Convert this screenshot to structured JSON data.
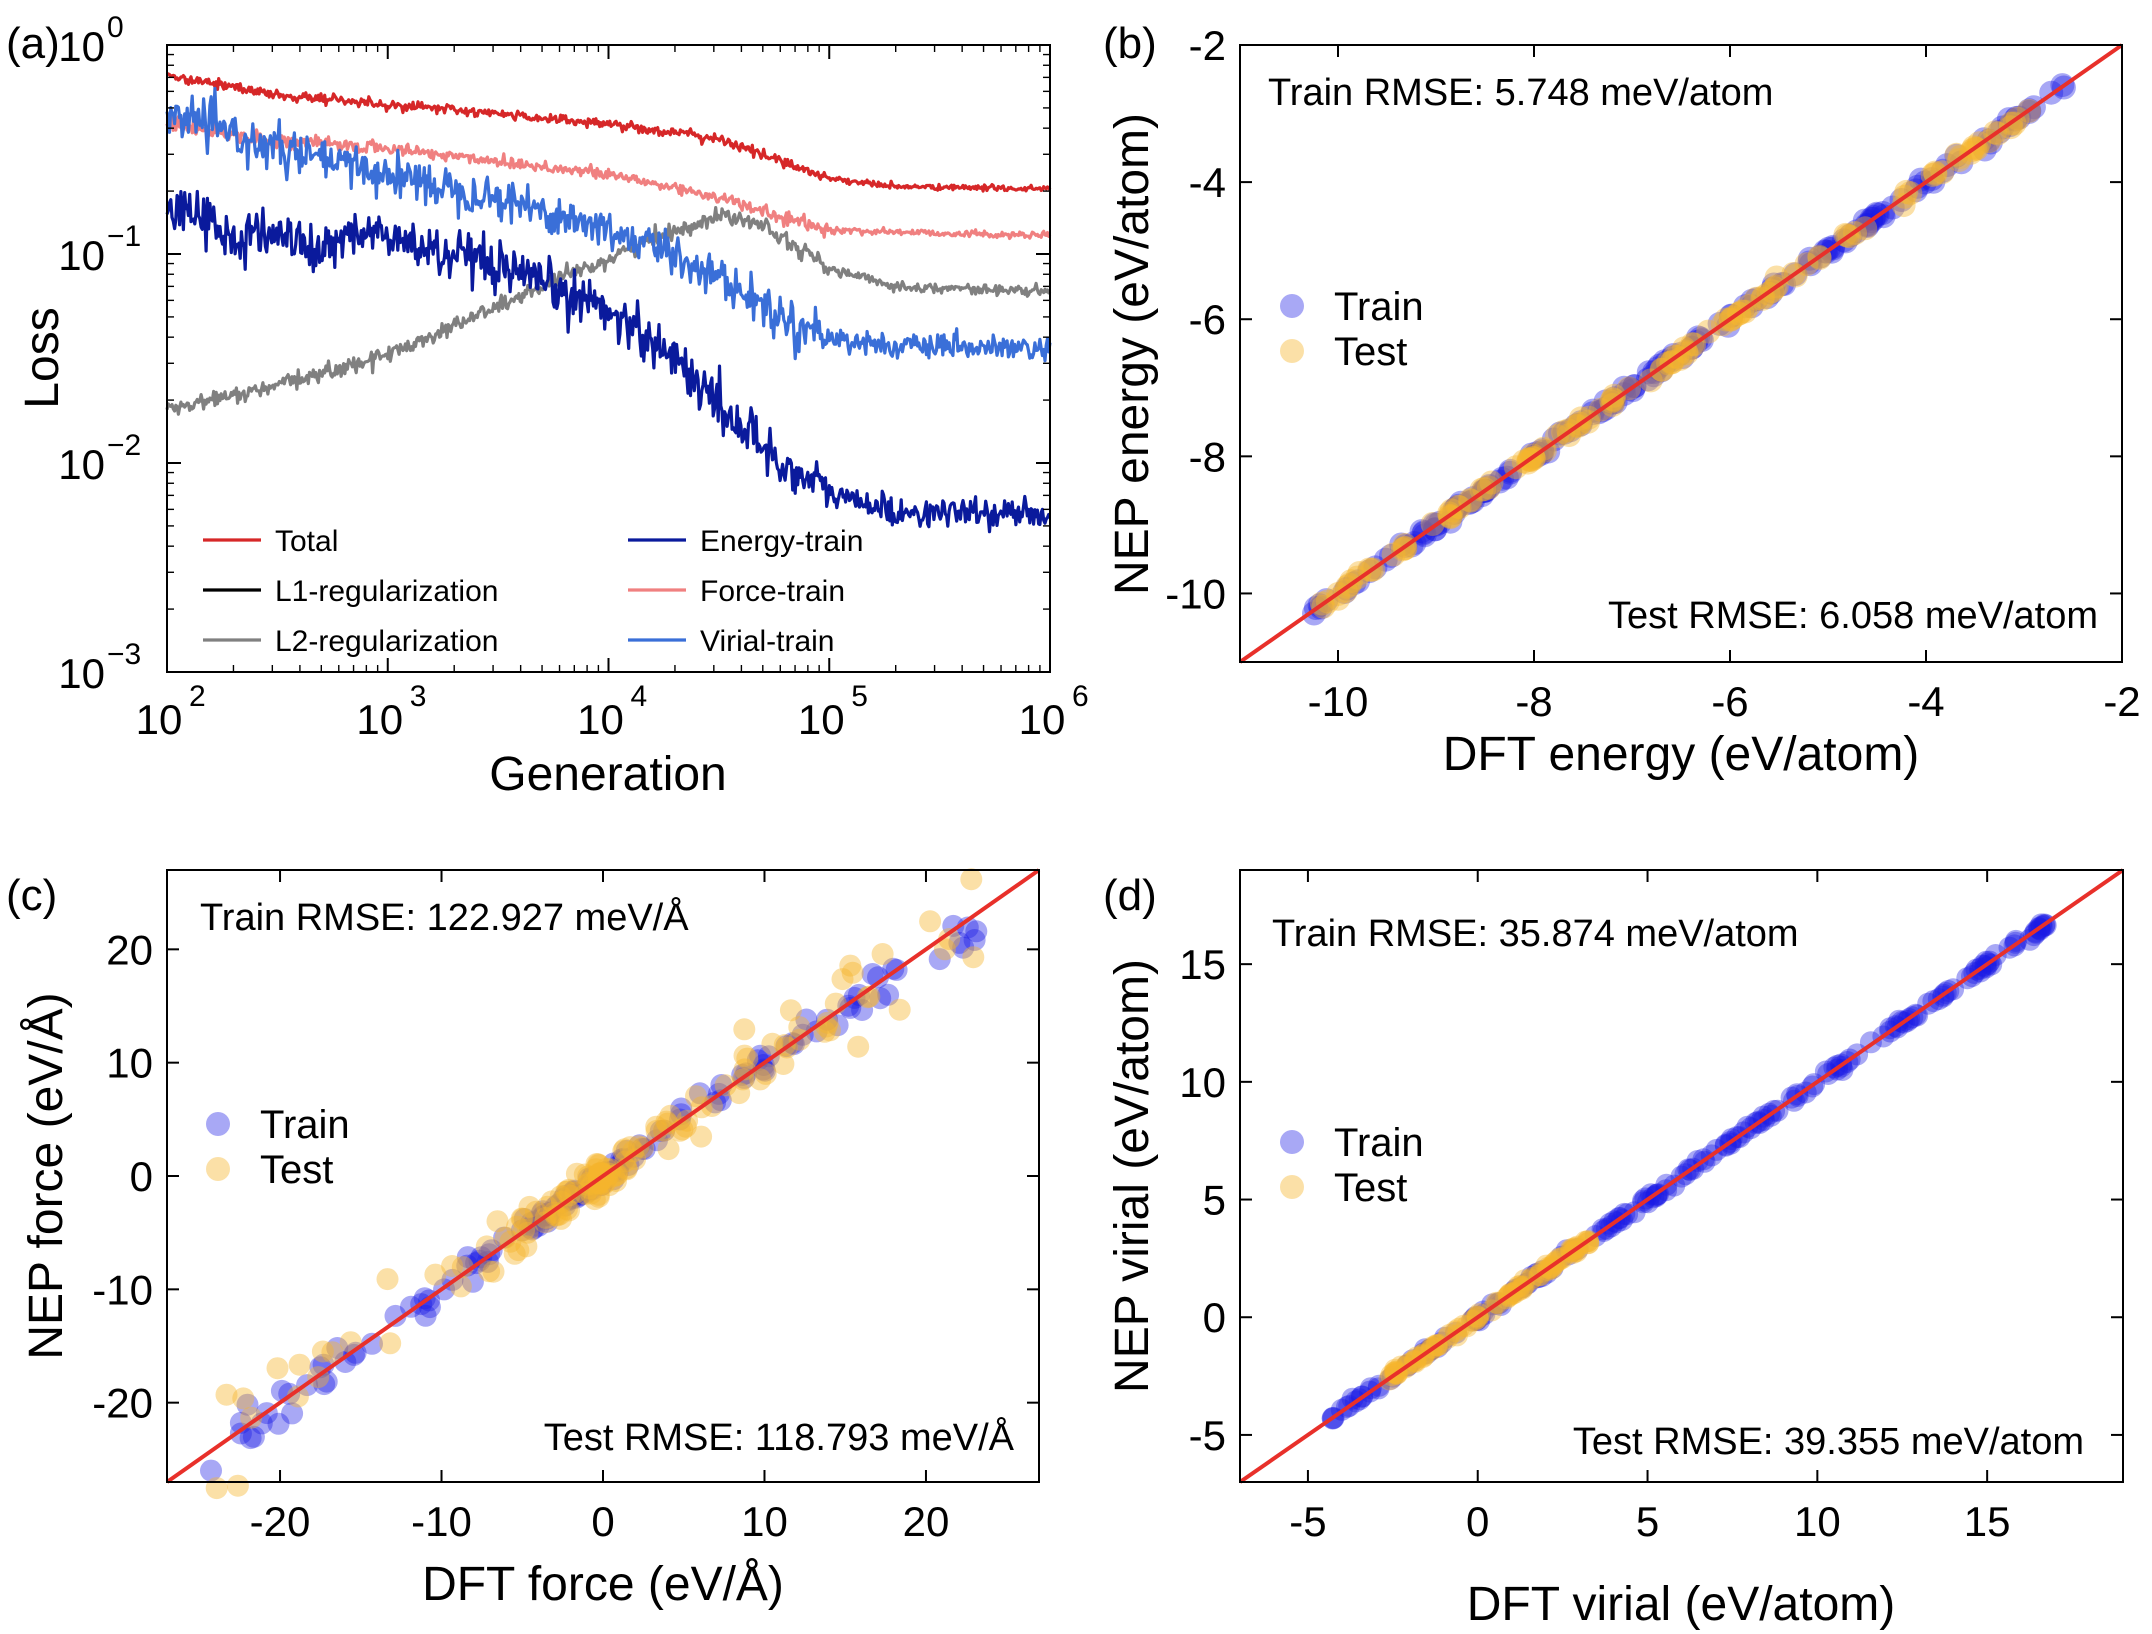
{
  "chart_data": [
    {
      "panel": "(a)",
      "type": "line",
      "xlabel": "Generation",
      "ylabel": "Loss",
      "xscale": "log",
      "yscale": "log",
      "xlim": [
        100,
        1000000
      ],
      "ylim": [
        0.001,
        1
      ],
      "xticks": [
        {
          "v": 100,
          "b": "10",
          "e": "2"
        },
        {
          "v": 1000,
          "b": "10",
          "e": "3"
        },
        {
          "v": 10000,
          "b": "10",
          "e": "4"
        },
        {
          "v": 100000,
          "b": "10",
          "e": "5"
        },
        {
          "v": 1000000,
          "b": "10",
          "e": "6"
        }
      ],
      "yticks": [
        {
          "v": 0.001,
          "b": "10",
          "e": "−3"
        },
        {
          "v": 0.01,
          "b": "10",
          "e": "−2"
        },
        {
          "v": 0.1,
          "b": "10",
          "e": "−1"
        },
        {
          "v": 1,
          "b": "10",
          "e": "0"
        }
      ],
      "legend_position": "lower-center",
      "series": [
        {
          "name": "Total",
          "color": "#d62728",
          "noise": 0.012,
          "points": [
            [
              100,
              0.72
            ],
            [
              300,
              0.58
            ],
            [
              1000,
              0.52
            ],
            [
              3000,
              0.47
            ],
            [
              10000,
              0.42
            ],
            [
              20000,
              0.38
            ],
            [
              30000,
              0.36
            ],
            [
              60000,
              0.28
            ],
            [
              100000,
              0.23
            ],
            [
              200000,
              0.21
            ],
            [
              1000000,
              0.205
            ]
          ]
        },
        {
          "name": "L1-regularization",
          "color": "#000000",
          "points": []
        },
        {
          "name": "L2-regularization",
          "color": "#808080",
          "noise": 0.02,
          "points": [
            [
              100,
              0.018
            ],
            [
              300,
              0.023
            ],
            [
              1000,
              0.033
            ],
            [
              3000,
              0.055
            ],
            [
              10000,
              0.095
            ],
            [
              20000,
              0.13
            ],
            [
              35000,
              0.155
            ],
            [
              50000,
              0.14
            ],
            [
              100000,
              0.085
            ],
            [
              200000,
              0.07
            ],
            [
              1000000,
              0.066
            ]
          ]
        },
        {
          "name": "Energy-train",
          "color": "#0a1a9c",
          "noise": 0.06,
          "points": [
            [
              100,
              0.155
            ],
            [
              150,
              0.16
            ],
            [
              200,
              0.11
            ],
            [
              300,
              0.13
            ],
            [
              500,
              0.1
            ],
            [
              700,
              0.13
            ],
            [
              1000,
              0.12
            ],
            [
              3000,
              0.085
            ],
            [
              10000,
              0.055
            ],
            [
              20000,
              0.032
            ],
            [
              30000,
              0.02
            ],
            [
              60000,
              0.01
            ],
            [
              100000,
              0.0072
            ],
            [
              200000,
              0.0058
            ],
            [
              1000000,
              0.0057
            ]
          ]
        },
        {
          "name": "Force-train",
          "color": "#f08080",
          "noise": 0.015,
          "points": [
            [
              100,
              0.42
            ],
            [
              300,
              0.35
            ],
            [
              1000,
              0.32
            ],
            [
              3000,
              0.28
            ],
            [
              10000,
              0.24
            ],
            [
              30000,
              0.19
            ],
            [
              60000,
              0.15
            ],
            [
              100000,
              0.13
            ],
            [
              1000000,
              0.122
            ]
          ]
        },
        {
          "name": "Virial-train",
          "color": "#3a6fd8",
          "noise": 0.05,
          "points": [
            [
              100,
              0.48
            ],
            [
              300,
              0.32
            ],
            [
              1000,
              0.24
            ],
            [
              3000,
              0.19
            ],
            [
              10000,
              0.13
            ],
            [
              20000,
              0.1
            ],
            [
              30000,
              0.08
            ],
            [
              60000,
              0.05
            ],
            [
              100000,
              0.04
            ],
            [
              200000,
              0.036
            ],
            [
              1000000,
              0.035
            ]
          ]
        }
      ]
    },
    {
      "panel": "(b)",
      "type": "scatter",
      "xlabel": "DFT energy (eV/atom)",
      "ylabel": "NEP energy (eV/atom)",
      "xlim": [
        -11,
        -2
      ],
      "ylim": [
        -11,
        -2
      ],
      "xticks": [
        {
          "v": -10,
          "t": "-10"
        },
        {
          "v": -8,
          "t": "-8"
        },
        {
          "v": -6,
          "t": "-6"
        },
        {
          "v": -4,
          "t": "-4"
        },
        {
          "v": -2,
          "t": "-2"
        }
      ],
      "yticks": [
        {
          "v": -10,
          "t": "-10"
        },
        {
          "v": -8,
          "t": "-8"
        },
        {
          "v": -6,
          "t": "-6"
        },
        {
          "v": -4,
          "t": "-4"
        },
        {
          "v": -2,
          "t": "-2"
        }
      ],
      "train_rmse": "Train RMSE: 5.748 meV/atom",
      "test_rmse": "Test RMSE: 6.058 meV/atom",
      "legend": [
        "Train",
        "Test"
      ],
      "legend_position": "center-left",
      "series": [
        {
          "name": "Train",
          "color": "#1a1ae6",
          "x_range": [
            -10.25,
            -2.55
          ],
          "scatter": 0.04,
          "count": 170
        },
        {
          "name": "Test",
          "color": "#f5b52e",
          "x_range": [
            -10.2,
            -2.9
          ],
          "scatter": 0.035,
          "count": 130
        }
      ]
    },
    {
      "panel": "(c)",
      "type": "scatter",
      "xlabel": "DFT force (eV/Å)",
      "ylabel": "NEP force (eV/Å)",
      "xlim": [
        -27,
        27
      ],
      "ylim": [
        -27,
        27
      ],
      "xticks": [
        {
          "v": -20,
          "t": "-20"
        },
        {
          "v": -10,
          "t": "-10"
        },
        {
          "v": 0,
          "t": "0"
        },
        {
          "v": 10,
          "t": "10"
        },
        {
          "v": 20,
          "t": "20"
        }
      ],
      "yticks": [
        {
          "v": -20,
          "t": "-20"
        },
        {
          "v": -10,
          "t": "-10"
        },
        {
          "v": 0,
          "t": "0"
        },
        {
          "v": 10,
          "t": "10"
        },
        {
          "v": 20,
          "t": "20"
        }
      ],
      "train_rmse": "Train RMSE: 122.927 meV/Å",
      "test_rmse": "Test RMSE: 118.793 meV/Å",
      "legend": [
        "Train",
        "Test"
      ],
      "legend_position": "center-left",
      "series": [
        {
          "name": "Train",
          "color": "#1a1ae6",
          "x_range": [
            -24.5,
            24.3
          ],
          "scatter": 0.5,
          "count": 190
        },
        {
          "name": "Test",
          "color": "#f5b52e",
          "x_range": [
            -24,
            23.5
          ],
          "scatter": 1.1,
          "count": 160
        }
      ]
    },
    {
      "panel": "(d)",
      "type": "scatter",
      "xlabel": "DFT virial (eV/atom)",
      "ylabel": "NEP virial (eV/atom)",
      "xlim": [
        -7,
        19
      ],
      "ylim": [
        -7,
        19
      ],
      "xticks": [
        {
          "v": -5,
          "t": "-5"
        },
        {
          "v": 0,
          "t": "0"
        },
        {
          "v": 5,
          "t": "5"
        },
        {
          "v": 10,
          "t": "10"
        },
        {
          "v": 15,
          "t": "15"
        }
      ],
      "yticks": [
        {
          "v": -5,
          "t": "-5"
        },
        {
          "v": 0,
          "t": "0"
        },
        {
          "v": 5,
          "t": "5"
        },
        {
          "v": 10,
          "t": "10"
        },
        {
          "v": 15,
          "t": "15"
        }
      ],
      "train_rmse": "Train RMSE: 35.874 meV/atom",
      "test_rmse": "Test RMSE: 39.355 meV/atom",
      "legend": [
        "Train",
        "Test"
      ],
      "legend_position": "center-left",
      "series": [
        {
          "name": "Train",
          "color": "#1a1ae6",
          "x_range": [
            -4.4,
            16.8
          ],
          "scatter": 0.08,
          "count": 190
        },
        {
          "name": "Test",
          "color": "#f5b52e",
          "x_range": [
            -2.6,
            3.3
          ],
          "scatter": 0.08,
          "count": 90
        }
      ]
    }
  ]
}
